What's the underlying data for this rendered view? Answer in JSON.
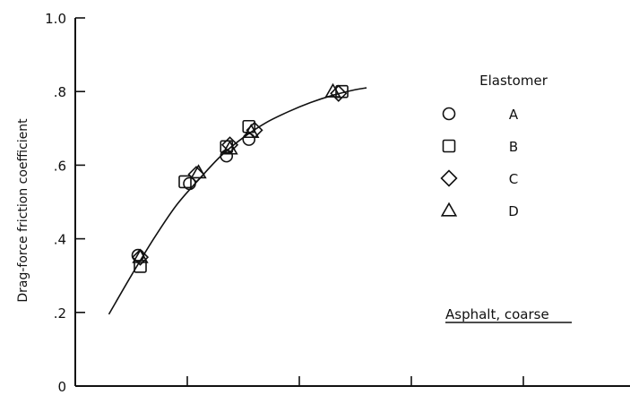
{
  "chart_data": {
    "type": "scatter",
    "title": "",
    "ylabel": "Drag-force friction coefficient",
    "xlabel": "",
    "ylim": [
      0,
      1.0
    ],
    "xlim": [
      0,
      5
    ],
    "y_ticks": [
      {
        "value": 0,
        "label": "0"
      },
      {
        "value": 0.2,
        "label": ".2"
      },
      {
        "value": 0.4,
        "label": ".4"
      },
      {
        "value": 0.6,
        "label": ".6"
      },
      {
        "value": 0.8,
        "label": ".8"
      },
      {
        "value": 1.0,
        "label": "1.0"
      }
    ],
    "x_ticks": [
      1,
      2,
      3,
      4,
      5
    ],
    "grid": false,
    "legend": {
      "title": "Elastomer",
      "placement": "right"
    },
    "annotation": "Asphalt, coarse",
    "series": [
      {
        "name": "A",
        "marker": "circle",
        "x": [
          0.56,
          1.02,
          1.35,
          1.55
        ],
        "y": [
          0.355,
          0.55,
          0.625,
          0.67
        ]
      },
      {
        "name": "B",
        "marker": "square",
        "x": [
          0.58,
          0.98,
          1.35,
          1.55,
          2.38
        ],
        "y": [
          0.325,
          0.555,
          0.65,
          0.705,
          0.8
        ]
      },
      {
        "name": "C",
        "marker": "diamond",
        "x": [
          0.58,
          1.08,
          1.38,
          1.6,
          2.35
        ],
        "y": [
          0.35,
          0.575,
          0.655,
          0.695,
          0.795
        ]
      },
      {
        "name": "D",
        "marker": "triangle",
        "x": [
          0.58,
          1.1,
          1.38,
          1.57,
          2.3
        ],
        "y": [
          0.35,
          0.58,
          0.645,
          0.69,
          0.8
        ]
      }
    ],
    "fit_curve": {
      "x": [
        0.3,
        0.5,
        0.7,
        0.9,
        1.1,
        1.3,
        1.5,
        1.7,
        1.9,
        2.1,
        2.3,
        2.5,
        2.6
      ],
      "y": [
        0.195,
        0.3,
        0.4,
        0.49,
        0.56,
        0.625,
        0.675,
        0.715,
        0.745,
        0.77,
        0.79,
        0.805,
        0.81
      ]
    }
  }
}
